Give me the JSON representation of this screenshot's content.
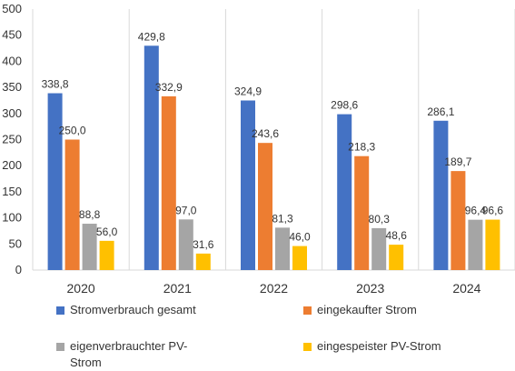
{
  "chart_data": {
    "type": "bar",
    "categories": [
      "2020",
      "2021",
      "2022",
      "2023",
      "2024"
    ],
    "series": [
      {
        "name": "Stromverbrauch gesamt",
        "values": [
          338.8,
          429.8,
          324.9,
          298.6,
          286.1
        ],
        "labels": [
          "338,8",
          "429,8",
          "324,9",
          "298,6",
          "286,1"
        ],
        "color": "#4472C4"
      },
      {
        "name": "eingekaufter Strom",
        "values": [
          250.0,
          332.9,
          243.6,
          218.3,
          189.7
        ],
        "labels": [
          "250,0",
          "332,9",
          "243,6",
          "218,3",
          "189,7"
        ],
        "color": "#ED7D31"
      },
      {
        "name": "eigenverbrauchter PV-Strom",
        "values": [
          88.8,
          97.0,
          81.3,
          80.3,
          96.4
        ],
        "labels": [
          "88,8",
          "97,0",
          "81,3",
          "80,3",
          "96,4"
        ],
        "color": "#A5A5A5"
      },
      {
        "name": "eingespeister PV-Strom",
        "values": [
          56.0,
          31.6,
          46.0,
          48.6,
          96.6
        ],
        "labels": [
          "56,0",
          "31,6",
          "46,0",
          "48,6",
          "96,6"
        ],
        "color": "#FFC000"
      }
    ],
    "ylim": [
      0,
      500
    ],
    "yticks": [
      0,
      50,
      100,
      150,
      200,
      250,
      300,
      350,
      400,
      450,
      500
    ],
    "grid": "vertical category separators",
    "legend_position": "bottom",
    "title": "",
    "xlabel": "",
    "ylabel": ""
  }
}
